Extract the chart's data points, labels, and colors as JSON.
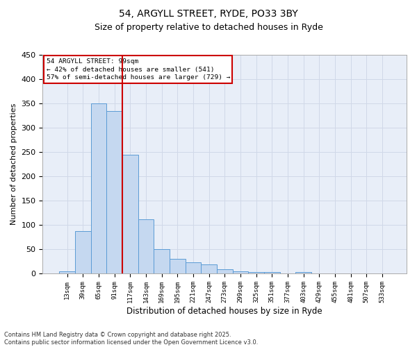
{
  "title1": "54, ARGYLL STREET, RYDE, PO33 3BY",
  "title2": "Size of property relative to detached houses in Ryde",
  "xlabel": "Distribution of detached houses by size in Ryde",
  "ylabel": "Number of detached properties",
  "categories": [
    "13sqm",
    "39sqm",
    "65sqm",
    "91sqm",
    "117sqm",
    "143sqm",
    "169sqm",
    "195sqm",
    "221sqm",
    "247sqm",
    "273sqm",
    "299sqm",
    "325sqm",
    "351sqm",
    "377sqm",
    "403sqm",
    "429sqm",
    "455sqm",
    "481sqm",
    "507sqm",
    "533sqm"
  ],
  "values": [
    5,
    88,
    350,
    335,
    245,
    112,
    50,
    30,
    24,
    19,
    9,
    5,
    4,
    4,
    0,
    4,
    1,
    0,
    0,
    1,
    1
  ],
  "bar_color": "#c5d8f0",
  "bar_edge_color": "#5b9bd5",
  "grid_color": "#d0d8e8",
  "background_color": "#e8eef8",
  "annotation_line1": "54 ARGYLL STREET: 99sqm",
  "annotation_line2": "← 42% of detached houses are smaller (541)",
  "annotation_line3": "57% of semi-detached houses are larger (729) →",
  "vline_x": 3.5,
  "vline_color": "#cc0000",
  "box_color": "#cc0000",
  "footer_text": "Contains HM Land Registry data © Crown copyright and database right 2025.\nContains public sector information licensed under the Open Government Licence v3.0.",
  "ylim": [
    0,
    450
  ],
  "yticks": [
    0,
    50,
    100,
    150,
    200,
    250,
    300,
    350,
    400,
    450
  ]
}
